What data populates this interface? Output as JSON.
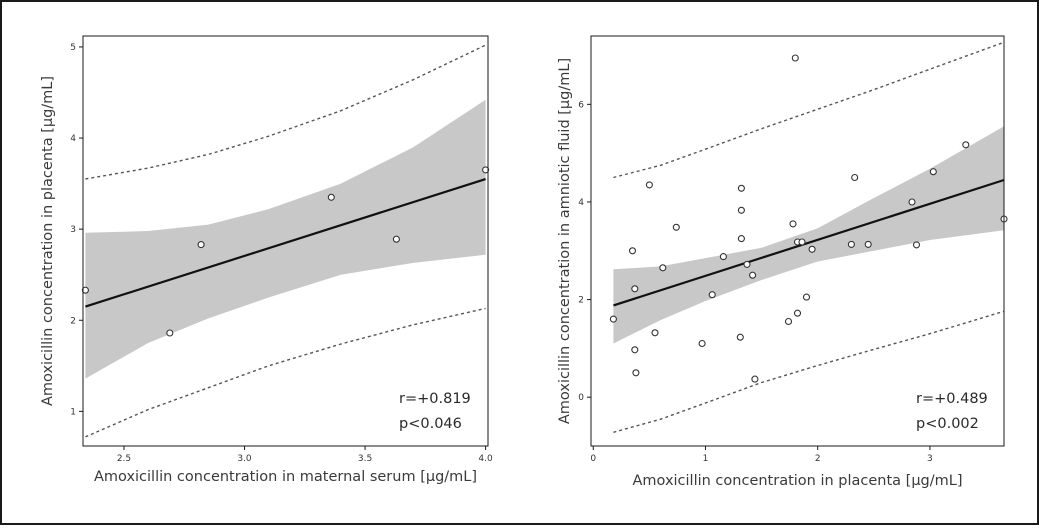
{
  "colors": {
    "band": "#c8c8c8",
    "line": "#111111",
    "prediction": "#555555",
    "point_stroke": "#333333",
    "frame": "#1a1a1a"
  },
  "chart_data": [
    {
      "type": "scatter",
      "xlabel": "Amoxicillin concentration in maternal serum [µg/mL]",
      "ylabel": "Amoxicillin concentration in placenta [µg/mL]",
      "xlim": [
        2.33,
        4.01
      ],
      "ylim": [
        0.62,
        5.12
      ],
      "xticks": [
        2.5,
        3.0,
        3.5,
        4.0
      ],
      "xtick_labels": [
        "2.5",
        "3.0",
        "3.5",
        "4.0"
      ],
      "yticks": [
        1,
        2,
        3,
        4,
        5
      ],
      "ytick_labels": [
        "1",
        "2",
        "3",
        "4",
        "5"
      ],
      "points": [
        [
          2.34,
          2.33
        ],
        [
          2.69,
          1.86
        ],
        [
          2.82,
          2.83
        ],
        [
          3.36,
          3.35
        ],
        [
          3.63,
          2.89
        ],
        [
          4.0,
          3.65
        ]
      ],
      "regression": [
        [
          2.34,
          2.15
        ],
        [
          4.0,
          3.55
        ]
      ],
      "confidence_band": {
        "x": [
          2.34,
          2.6,
          2.85,
          3.1,
          3.4,
          3.7,
          4.0
        ],
        "lower": [
          1.36,
          1.75,
          2.02,
          2.25,
          2.5,
          2.63,
          2.72
        ],
        "upper": [
          2.96,
          2.98,
          3.05,
          3.22,
          3.5,
          3.9,
          4.42
        ]
      },
      "prediction_band": {
        "x": [
          2.34,
          2.6,
          2.85,
          3.1,
          3.4,
          3.7,
          4.0
        ],
        "lower": [
          0.72,
          1.02,
          1.26,
          1.5,
          1.74,
          1.95,
          2.13
        ],
        "upper": [
          3.55,
          3.67,
          3.82,
          4.02,
          4.3,
          4.64,
          5.02
        ]
      },
      "annotation": {
        "r": "r=+0.819",
        "p": "p<0.046"
      },
      "grid": false
    },
    {
      "type": "scatter",
      "xlabel": "Amoxicillin concentration in placenta [µg/mL]",
      "ylabel": "Amoxicillin concentration in amniotic fluid  [µg/mL]",
      "xlim": [
        -0.02,
        3.66
      ],
      "ylim": [
        -1.0,
        7.4
      ],
      "xticks": [
        0,
        1,
        2,
        3
      ],
      "xtick_labels": [
        "0",
        "1",
        "2",
        "3"
      ],
      "yticks": [
        0,
        2,
        4,
        6
      ],
      "ytick_labels": [
        "0",
        "2",
        "4",
        "6"
      ],
      "points": [
        [
          0.18,
          1.6
        ],
        [
          0.35,
          3.0
        ],
        [
          0.37,
          0.97
        ],
        [
          0.37,
          2.22
        ],
        [
          0.38,
          0.5
        ],
        [
          0.5,
          4.35
        ],
        [
          0.55,
          1.32
        ],
        [
          0.62,
          2.65
        ],
        [
          0.74,
          3.48
        ],
        [
          0.97,
          1.1
        ],
        [
          1.06,
          2.1
        ],
        [
          1.16,
          2.88
        ],
        [
          1.31,
          1.23
        ],
        [
          1.32,
          4.28
        ],
        [
          1.32,
          3.83
        ],
        [
          1.32,
          3.25
        ],
        [
          1.37,
          2.72
        ],
        [
          1.42,
          2.5
        ],
        [
          1.44,
          0.37
        ],
        [
          1.74,
          1.55
        ],
        [
          1.78,
          3.55
        ],
        [
          1.8,
          6.95
        ],
        [
          1.82,
          1.72
        ],
        [
          1.82,
          3.18
        ],
        [
          1.86,
          3.18
        ],
        [
          1.9,
          2.05
        ],
        [
          1.95,
          3.03
        ],
        [
          2.3,
          3.13
        ],
        [
          2.33,
          4.5
        ],
        [
          2.45,
          3.13
        ],
        [
          2.84,
          4.0
        ],
        [
          2.88,
          3.12
        ],
        [
          3.03,
          4.62
        ],
        [
          3.32,
          5.17
        ],
        [
          3.66,
          3.65
        ]
      ],
      "regression": [
        [
          0.18,
          1.88
        ],
        [
          3.66,
          4.45
        ]
      ],
      "confidence_band": {
        "x": [
          0.18,
          0.6,
          1.0,
          1.5,
          2.0,
          2.5,
          3.0,
          3.66
        ],
        "lower": [
          1.1,
          1.58,
          1.97,
          2.4,
          2.78,
          3.0,
          3.22,
          3.42
        ],
        "upper": [
          2.62,
          2.68,
          2.85,
          3.06,
          3.46,
          4.08,
          4.68,
          5.55
        ]
      },
      "prediction_band": {
        "x": [
          0.18,
          0.6,
          1.0,
          1.5,
          2.0,
          2.5,
          3.0,
          3.66
        ],
        "lower": [
          -0.72,
          -0.45,
          -0.12,
          0.3,
          0.65,
          0.98,
          1.3,
          1.76
        ],
        "upper": [
          4.5,
          4.75,
          5.08,
          5.5,
          5.9,
          6.3,
          6.72,
          7.27
        ]
      },
      "annotation": {
        "r": "r=+0.489",
        "p": "p<0.002"
      },
      "grid": false
    }
  ]
}
